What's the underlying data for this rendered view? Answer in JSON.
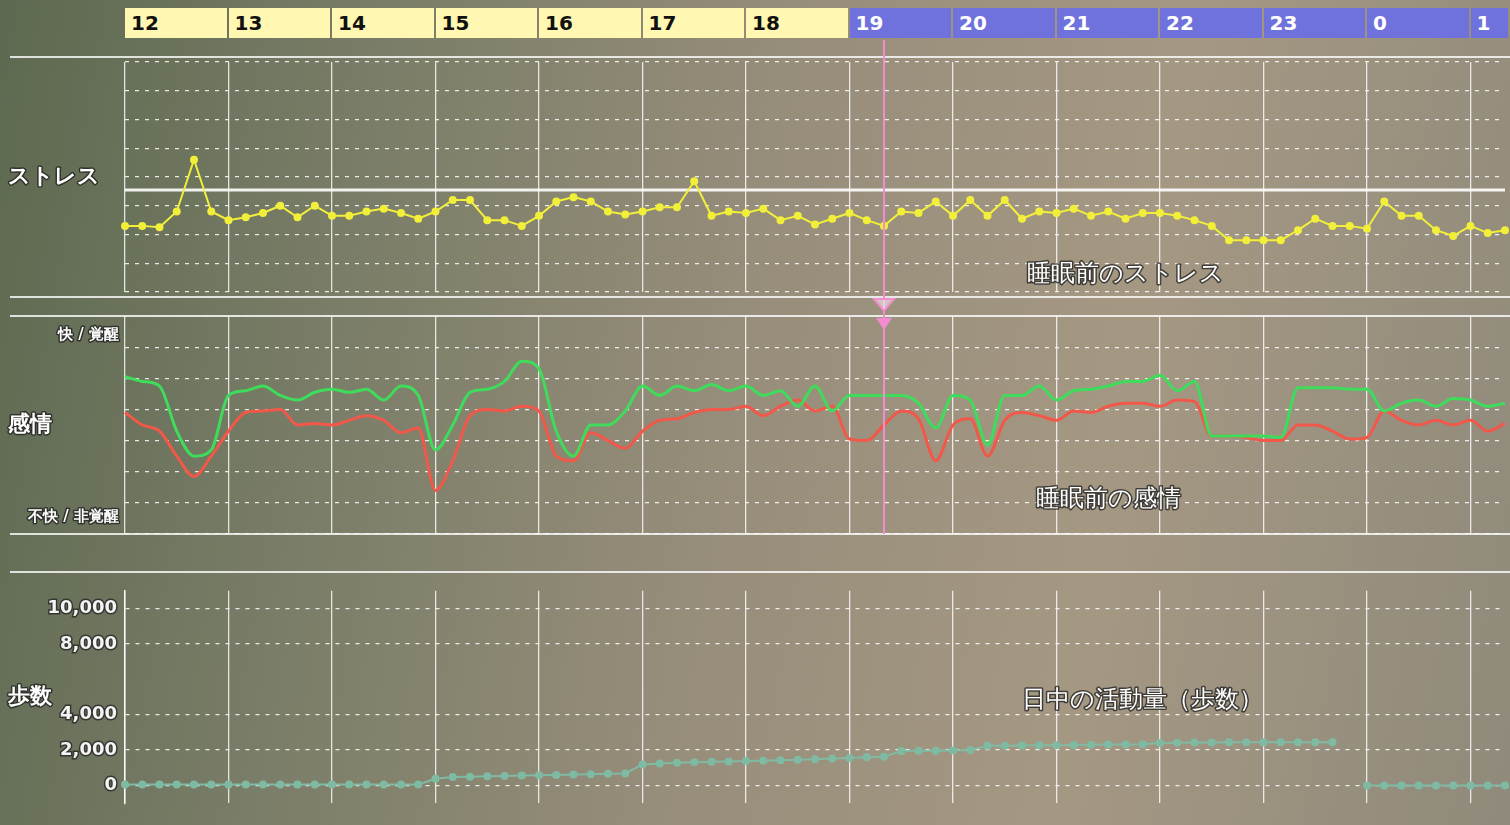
{
  "chart_data": [
    {
      "type": "line",
      "y_label": "ストレス",
      "tick_labels": "x",
      "grid": true,
      "categories": [
        "12",
        null,
        null,
        null,
        null,
        null,
        "13",
        null,
        null,
        null,
        null,
        null,
        "14",
        null,
        null,
        null,
        null,
        null,
        "15",
        null,
        null,
        null,
        null,
        null,
        "16",
        null,
        null,
        null,
        null,
        null,
        "17",
        null,
        null,
        null,
        null,
        null,
        "18",
        null,
        null,
        null,
        null,
        null,
        "19",
        null,
        null,
        null,
        null,
        null,
        "20",
        null,
        null,
        null,
        null,
        null,
        "21",
        null,
        null,
        null,
        null,
        null,
        "22",
        null,
        null,
        null,
        null,
        null,
        "23",
        null,
        null,
        null,
        null,
        null,
        "0",
        null,
        null,
        null,
        null,
        null,
        "1",
        null,
        null
      ],
      "ylim": [
        0,
        8
      ],
      "yticks": [
        0,
        1,
        2,
        3,
        4,
        5,
        6,
        7,
        8
      ],
      "threshold": 3.55,
      "annotations": [
        {
          "text": "睡眠前のストレス",
          "x": 58,
          "y": 0.6
        }
      ],
      "series": [
        {
          "color": "#f2ef3a",
          "marker": "circle",
          "line_style": "solid",
          "values": [
            2.3,
            2.3,
            2.25,
            2.8,
            4.6,
            2.8,
            2.5,
            2.6,
            2.75,
            3.0,
            2.6,
            3.0,
            2.65,
            2.65,
            2.8,
            2.9,
            2.75,
            2.55,
            2.8,
            3.2,
            3.2,
            2.5,
            2.5,
            2.3,
            2.65,
            3.15,
            3.3,
            3.15,
            2.8,
            2.7,
            2.8,
            2.95,
            2.95,
            3.85,
            2.65,
            2.8,
            2.75,
            2.9,
            2.5,
            2.65,
            2.35,
            2.55,
            2.75,
            2.5,
            2.3,
            2.8,
            2.75,
            3.15,
            2.65,
            3.2,
            2.65,
            3.2,
            2.55,
            2.8,
            2.75,
            2.9,
            2.65,
            2.8,
            2.55,
            2.75,
            2.75,
            2.65,
            2.5,
            2.3,
            1.8,
            1.8,
            1.8,
            1.8,
            2.15,
            2.55,
            2.3,
            2.3,
            2.2,
            3.15,
            2.65,
            2.65,
            2.15,
            1.95,
            2.3,
            2.05,
            2.15
          ]
        }
      ]
    },
    {
      "type": "line",
      "y_label": "感情",
      "tick_labels": false,
      "grid": true,
      "categories": [
        "12",
        null,
        null,
        null,
        null,
        null,
        "13",
        null,
        null,
        null,
        null,
        null,
        "14",
        null,
        null,
        null,
        null,
        null,
        "15",
        null,
        null,
        null,
        null,
        null,
        "16",
        null,
        null,
        null,
        null,
        null,
        "17",
        null,
        null,
        null,
        null,
        null,
        "18",
        null,
        null,
        null,
        null,
        null,
        "19",
        null,
        null,
        null,
        null,
        null,
        "20",
        null,
        null,
        null,
        null,
        null,
        "21",
        null,
        null,
        null,
        null,
        null,
        "22",
        null,
        null,
        null,
        null,
        null,
        "23",
        null,
        null,
        null,
        null,
        null,
        "0",
        null,
        null,
        null,
        null,
        null,
        "1",
        null,
        null
      ],
      "ylim": [
        0,
        7
      ],
      "yticks": [
        0,
        1,
        2,
        3,
        4,
        5,
        6,
        7
      ],
      "annotations": [
        {
          "text": "快 / 覚醒",
          "y": 6.4
        },
        {
          "text": "不快 / 非覚醒",
          "y": 0.55
        },
        {
          "text": "睡眠前の感情",
          "x": 57,
          "y": 1.1
        }
      ],
      "series": [
        {
          "color": "#3fdc5c",
          "line_style": "solid",
          "values": [
            5.05,
            4.9,
            4.75,
            3.3,
            2.5,
            2.7,
            4.45,
            4.6,
            4.75,
            4.45,
            4.3,
            4.55,
            4.65,
            4.55,
            4.65,
            4.3,
            4.75,
            4.45,
            2.7,
            3.5,
            4.55,
            4.65,
            4.9,
            5.55,
            5.3,
            3.3,
            2.5,
            3.5,
            3.5,
            3.95,
            4.75,
            4.45,
            4.75,
            4.6,
            4.8,
            4.6,
            4.75,
            4.45,
            4.6,
            4.1,
            4.75,
            3.95,
            4.45,
            4.45,
            4.45,
            4.45,
            4.2,
            3.4,
            4.45,
            4.3,
            2.85,
            4.45,
            4.45,
            4.75,
            4.3,
            4.6,
            4.65,
            4.75,
            4.9,
            4.9,
            5.1,
            4.6,
            4.9,
            3.15,
            3.15,
            3.15,
            3.15,
            3.1,
            4.7,
            4.7,
            4.7,
            4.65,
            4.65,
            3.95,
            4.2,
            4.3,
            4.1,
            4.35,
            4.3,
            4.1,
            4.2
          ]
        },
        {
          "color": "#f2584a",
          "line_style": "solid",
          "values": [
            3.9,
            3.5,
            3.3,
            2.5,
            1.85,
            2.5,
            3.3,
            3.9,
            3.95,
            4.0,
            3.5,
            3.55,
            3.5,
            3.65,
            3.8,
            3.65,
            3.25,
            3.4,
            1.4,
            2.35,
            3.8,
            4.0,
            3.95,
            4.1,
            3.95,
            2.5,
            2.35,
            3.25,
            3.0,
            2.75,
            3.3,
            3.65,
            3.7,
            3.9,
            4.0,
            4.0,
            4.1,
            3.8,
            4.1,
            4.3,
            3.95,
            4.1,
            3.05,
            3.0,
            3.5,
            3.95,
            3.7,
            2.35,
            3.5,
            3.7,
            2.5,
            3.65,
            3.9,
            3.8,
            3.65,
            3.95,
            3.9,
            4.1,
            4.2,
            4.2,
            4.1,
            4.3,
            4.25,
            3.15,
            3.15,
            3.1,
            3.0,
            3.0,
            3.5,
            3.5,
            3.3,
            3.05,
            3.1,
            3.95,
            3.65,
            3.5,
            3.65,
            3.5,
            3.65,
            3.3,
            3.55
          ]
        }
      ]
    },
    {
      "type": "line",
      "y_label": "歩数",
      "tick_labels": "y",
      "grid": true,
      "categories": [
        "12",
        null,
        null,
        null,
        null,
        null,
        "13",
        null,
        null,
        null,
        null,
        null,
        "14",
        null,
        null,
        null,
        null,
        null,
        "15",
        null,
        null,
        null,
        null,
        null,
        "16",
        null,
        null,
        null,
        null,
        null,
        "17",
        null,
        null,
        null,
        null,
        null,
        "18",
        null,
        null,
        null,
        null,
        null,
        "19",
        null,
        null,
        null,
        null,
        null,
        "20",
        null,
        null,
        null,
        null,
        null,
        "21",
        null,
        null,
        null,
        null,
        null,
        "22",
        null,
        null,
        null,
        null,
        null,
        "23",
        null,
        null,
        null,
        null,
        null,
        "0",
        null,
        null,
        null,
        null,
        null,
        "1",
        null,
        null
      ],
      "ylim": [
        -1000,
        11000
      ],
      "yticks": [
        0,
        {
          "value": 2000,
          "label": "2,000"
        },
        {
          "value": 4000,
          "label": "4,000"
        },
        {
          "value": 8000,
          "label": "8,000"
        },
        {
          "value": 10000,
          "label": "10,000"
        }
      ],
      "annotations": [
        {
          "text": "日中の活動量（歩数）",
          "x": 59,
          "y": 4800
        }
      ],
      "series": [
        {
          "color": "#7fbaa3",
          "marker": "circle",
          "line_style": "solid",
          "values": [
            50,
            50,
            50,
            50,
            50,
            50,
            50,
            50,
            50,
            50,
            50,
            50,
            50,
            50,
            50,
            50,
            50,
            60,
            380,
            480,
            500,
            520,
            540,
            560,
            580,
            600,
            620,
            640,
            660,
            680,
            1190,
            1240,
            1280,
            1310,
            1340,
            1360,
            1380,
            1400,
            1430,
            1460,
            1490,
            1520,
            1560,
            1590,
            1620,
            1950,
            1960,
            1970,
            1980,
            2000,
            2240,
            2250,
            2260,
            2270,
            2280,
            2290,
            2300,
            2310,
            2320,
            2330,
            2400,
            2420,
            2430,
            2430,
            2440,
            2440,
            2440,
            2440,
            2440,
            2440,
            2440,
            null,
            0,
            0,
            0,
            0,
            0,
            0,
            0,
            0,
            0
          ]
        }
      ]
    }
  ],
  "header_colors": [
    "#fff7b2",
    "#fff7b2",
    "#fff7b2",
    "#fff7b2",
    "#fff7b2",
    "#fff7b2",
    "#fff7b2",
    "#6f72dc",
    "#6f72dc",
    "#6f72dc",
    "#6f72dc",
    "#6f72dc",
    "#6f72dc",
    "#6f72dc"
  ],
  "cursor": 44
}
